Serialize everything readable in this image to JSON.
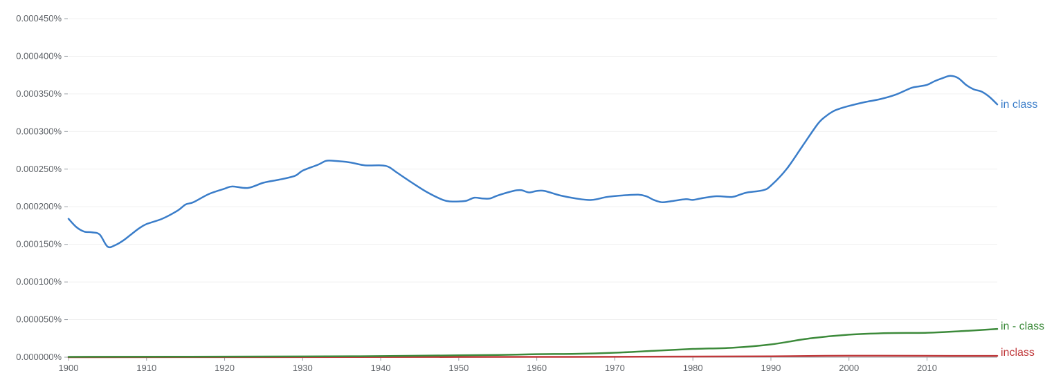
{
  "chart_data": {
    "type": "line",
    "x_range": [
      1900,
      2019
    ],
    "ylim": [
      0,
      0.00045
    ],
    "grid": true,
    "y_ticks": [
      0,
      5e-05,
      0.0001,
      0.00015,
      0.0002,
      0.00025,
      0.0003,
      0.00035,
      0.0004,
      0.00045
    ],
    "y_tick_labels": [
      "0.000000%",
      "0.000050%",
      "0.000100%",
      "0.000150%",
      "0.000200%",
      "0.000250%",
      "0.000300%",
      "0.000350%",
      "0.000400%",
      "0.000450%"
    ],
    "x_ticks": [
      1900,
      1910,
      1920,
      1930,
      1940,
      1950,
      1960,
      1970,
      1980,
      1990,
      2000,
      2010
    ],
    "x_tick_labels": [
      "1900",
      "1910",
      "1920",
      "1930",
      "1940",
      "1950",
      "1960",
      "1970",
      "1980",
      "1990",
      "2000",
      "2010"
    ],
    "series": [
      {
        "name": "in class",
        "color": "#3a7dc9",
        "x": [
          1900,
          1901,
          1902,
          1903,
          1904,
          1905,
          1906,
          1907,
          1908,
          1909,
          1910,
          1912,
          1914,
          1915,
          1916,
          1918,
          1920,
          1921,
          1923,
          1925,
          1927,
          1929,
          1930,
          1932,
          1933,
          1934,
          1936,
          1938,
          1940,
          1941,
          1942,
          1944,
          1946,
          1948,
          1949,
          1950,
          1951,
          1952,
          1953,
          1954,
          1955,
          1957,
          1958,
          1959,
          1960,
          1961,
          1963,
          1965,
          1967,
          1969,
          1971,
          1973,
          1974,
          1975,
          1976,
          1977,
          1979,
          1980,
          1981,
          1983,
          1985,
          1986,
          1987,
          1989,
          1990,
          1992,
          1994,
          1996,
          1997,
          1998,
          1999,
          2000,
          2002,
          2004,
          2006,
          2008,
          2009,
          2010,
          2011,
          2012,
          2013,
          2014,
          2015,
          2016,
          2017,
          2018,
          2019
        ],
        "values": [
          0.000184,
          0.000173,
          0.000167,
          0.000166,
          0.000163,
          0.000147,
          0.000149,
          0.000155,
          0.000163,
          0.000171,
          0.000177,
          0.000184,
          0.000195,
          0.000203,
          0.000206,
          0.000217,
          0.000224,
          0.000227,
          0.000225,
          0.000232,
          0.000236,
          0.000241,
          0.000248,
          0.000256,
          0.000261,
          0.000261,
          0.000259,
          0.000255,
          0.000255,
          0.000253,
          0.000246,
          0.000232,
          0.000219,
          0.000209,
          0.000207,
          0.000207,
          0.000208,
          0.000212,
          0.000211,
          0.000211,
          0.000215,
          0.000221,
          0.000222,
          0.000219,
          0.000221,
          0.000221,
          0.000215,
          0.000211,
          0.000209,
          0.000213,
          0.000215,
          0.000216,
          0.000214,
          0.000209,
          0.000206,
          0.000207,
          0.00021,
          0.000209,
          0.000211,
          0.000214,
          0.000213,
          0.000216,
          0.000219,
          0.000222,
          0.000228,
          0.00025,
          0.00028,
          0.00031,
          0.00032,
          0.000327,
          0.000331,
          0.000334,
          0.000339,
          0.000343,
          0.000349,
          0.000358,
          0.00036,
          0.000362,
          0.000367,
          0.000371,
          0.000374,
          0.000371,
          0.000362,
          0.000356,
          0.000353,
          0.000346,
          0.000336
        ]
      },
      {
        "name": "in - class",
        "color": "#3c8a3a",
        "x": [
          1900,
          1930,
          1940,
          1950,
          1955,
          1960,
          1965,
          1970,
          1975,
          1980,
          1985,
          1990,
          1995,
          2000,
          2005,
          2010,
          2015,
          2019
        ],
        "values": [
          5e-07,
          1e-06,
          1.5e-06,
          2.5e-06,
          3e-06,
          4e-06,
          4.5e-06,
          6e-06,
          8.5e-06,
          1.1e-05,
          1.25e-05,
          1.7e-05,
          2.5e-05,
          3e-05,
          3.2e-05,
          3.25e-05,
          3.5e-05,
          3.75e-05
        ]
      },
      {
        "name": "inclass",
        "color": "#c0393b",
        "x": [
          1900,
          1950,
          1970,
          1990,
          2000,
          2010,
          2019
        ],
        "values": [
          0.0,
          3e-07,
          6e-07,
          1.2e-06,
          2e-06,
          1.8e-06,
          1.7e-06
        ]
      }
    ]
  }
}
